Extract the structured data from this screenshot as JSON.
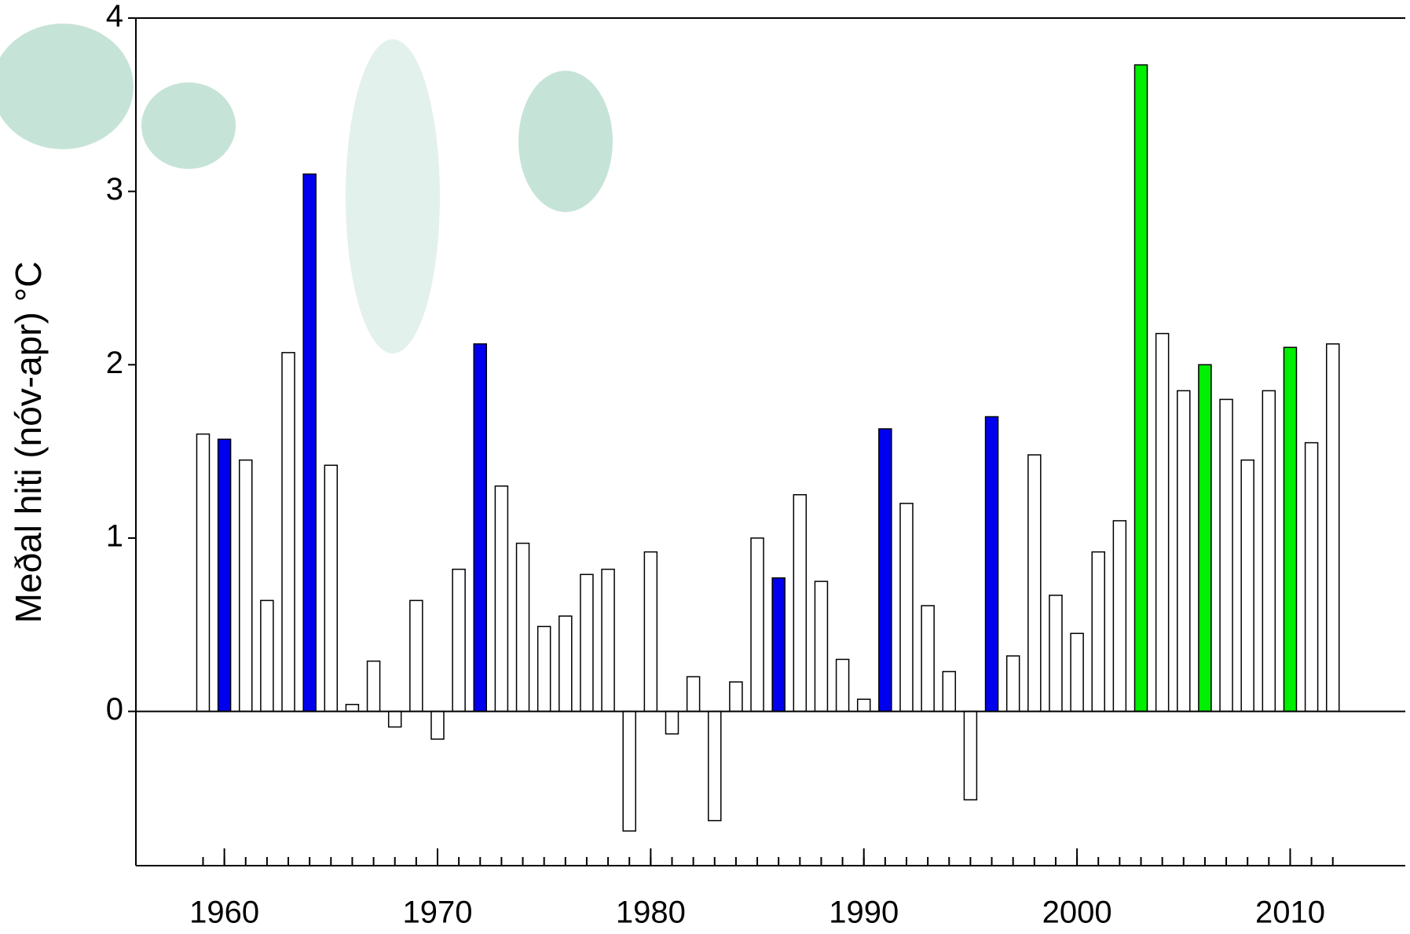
{
  "chart_data": {
    "type": "bar",
    "y_label": "Meðal hiti (nóv-apr) °C",
    "x": [
      1959,
      1960,
      1961,
      1962,
      1963,
      1964,
      1965,
      1966,
      1967,
      1968,
      1969,
      1970,
      1971,
      1972,
      1973,
      1974,
      1975,
      1976,
      1977,
      1978,
      1979,
      1980,
      1981,
      1982,
      1983,
      1984,
      1985,
      1986,
      1987,
      1988,
      1989,
      1990,
      1991,
      1992,
      1993,
      1994,
      1995,
      1996,
      1997,
      1998,
      1999,
      2000,
      2001,
      2002,
      2003,
      2004,
      2005,
      2006,
      2007,
      2008,
      2009,
      2010,
      2011,
      2012
    ],
    "values": [
      1.6,
      1.57,
      1.45,
      0.64,
      2.07,
      3.1,
      1.42,
      0.04,
      0.29,
      -0.09,
      0.64,
      -0.16,
      0.82,
      2.12,
      1.3,
      0.97,
      0.49,
      0.55,
      0.79,
      0.82,
      -0.69,
      0.92,
      -0.13,
      0.2,
      -0.63,
      0.17,
      1.0,
      0.77,
      1.25,
      0.75,
      0.3,
      0.07,
      1.63,
      1.2,
      0.61,
      0.23,
      -0.51,
      1.7,
      0.32,
      1.48,
      0.67,
      0.45,
      0.92,
      1.1,
      3.73,
      2.18,
      1.85,
      2.0,
      1.8,
      1.45,
      1.85,
      2.1,
      1.55,
      2.12
    ],
    "colors": [
      "#ffffff",
      "#0000ee",
      "#ffffff",
      "#ffffff",
      "#ffffff",
      "#0000ee",
      "#ffffff",
      "#ffffff",
      "#ffffff",
      "#ffffff",
      "#ffffff",
      "#ffffff",
      "#ffffff",
      "#0000ee",
      "#ffffff",
      "#ffffff",
      "#ffffff",
      "#ffffff",
      "#ffffff",
      "#ffffff",
      "#ffffff",
      "#ffffff",
      "#ffffff",
      "#ffffff",
      "#ffffff",
      "#ffffff",
      "#ffffff",
      "#0000ee",
      "#ffffff",
      "#ffffff",
      "#ffffff",
      "#ffffff",
      "#0000ee",
      "#ffffff",
      "#ffffff",
      "#ffffff",
      "#ffffff",
      "#0000ee",
      "#ffffff",
      "#ffffff",
      "#ffffff",
      "#ffffff",
      "#ffffff",
      "#ffffff",
      "#00ee00",
      "#ffffff",
      "#ffffff",
      "#00ee00",
      "#ffffff",
      "#ffffff",
      "#ffffff",
      "#00ee00",
      "#ffffff",
      "#ffffff"
    ],
    "xlim": [
      1955.85,
      2015.4
    ],
    "xticks": [
      1960,
      1970,
      1980,
      1990,
      2000,
      2010
    ],
    "ylim": [
      -0.89,
      4
    ],
    "yticks": [
      0,
      1,
      2,
      3,
      4
    ]
  }
}
